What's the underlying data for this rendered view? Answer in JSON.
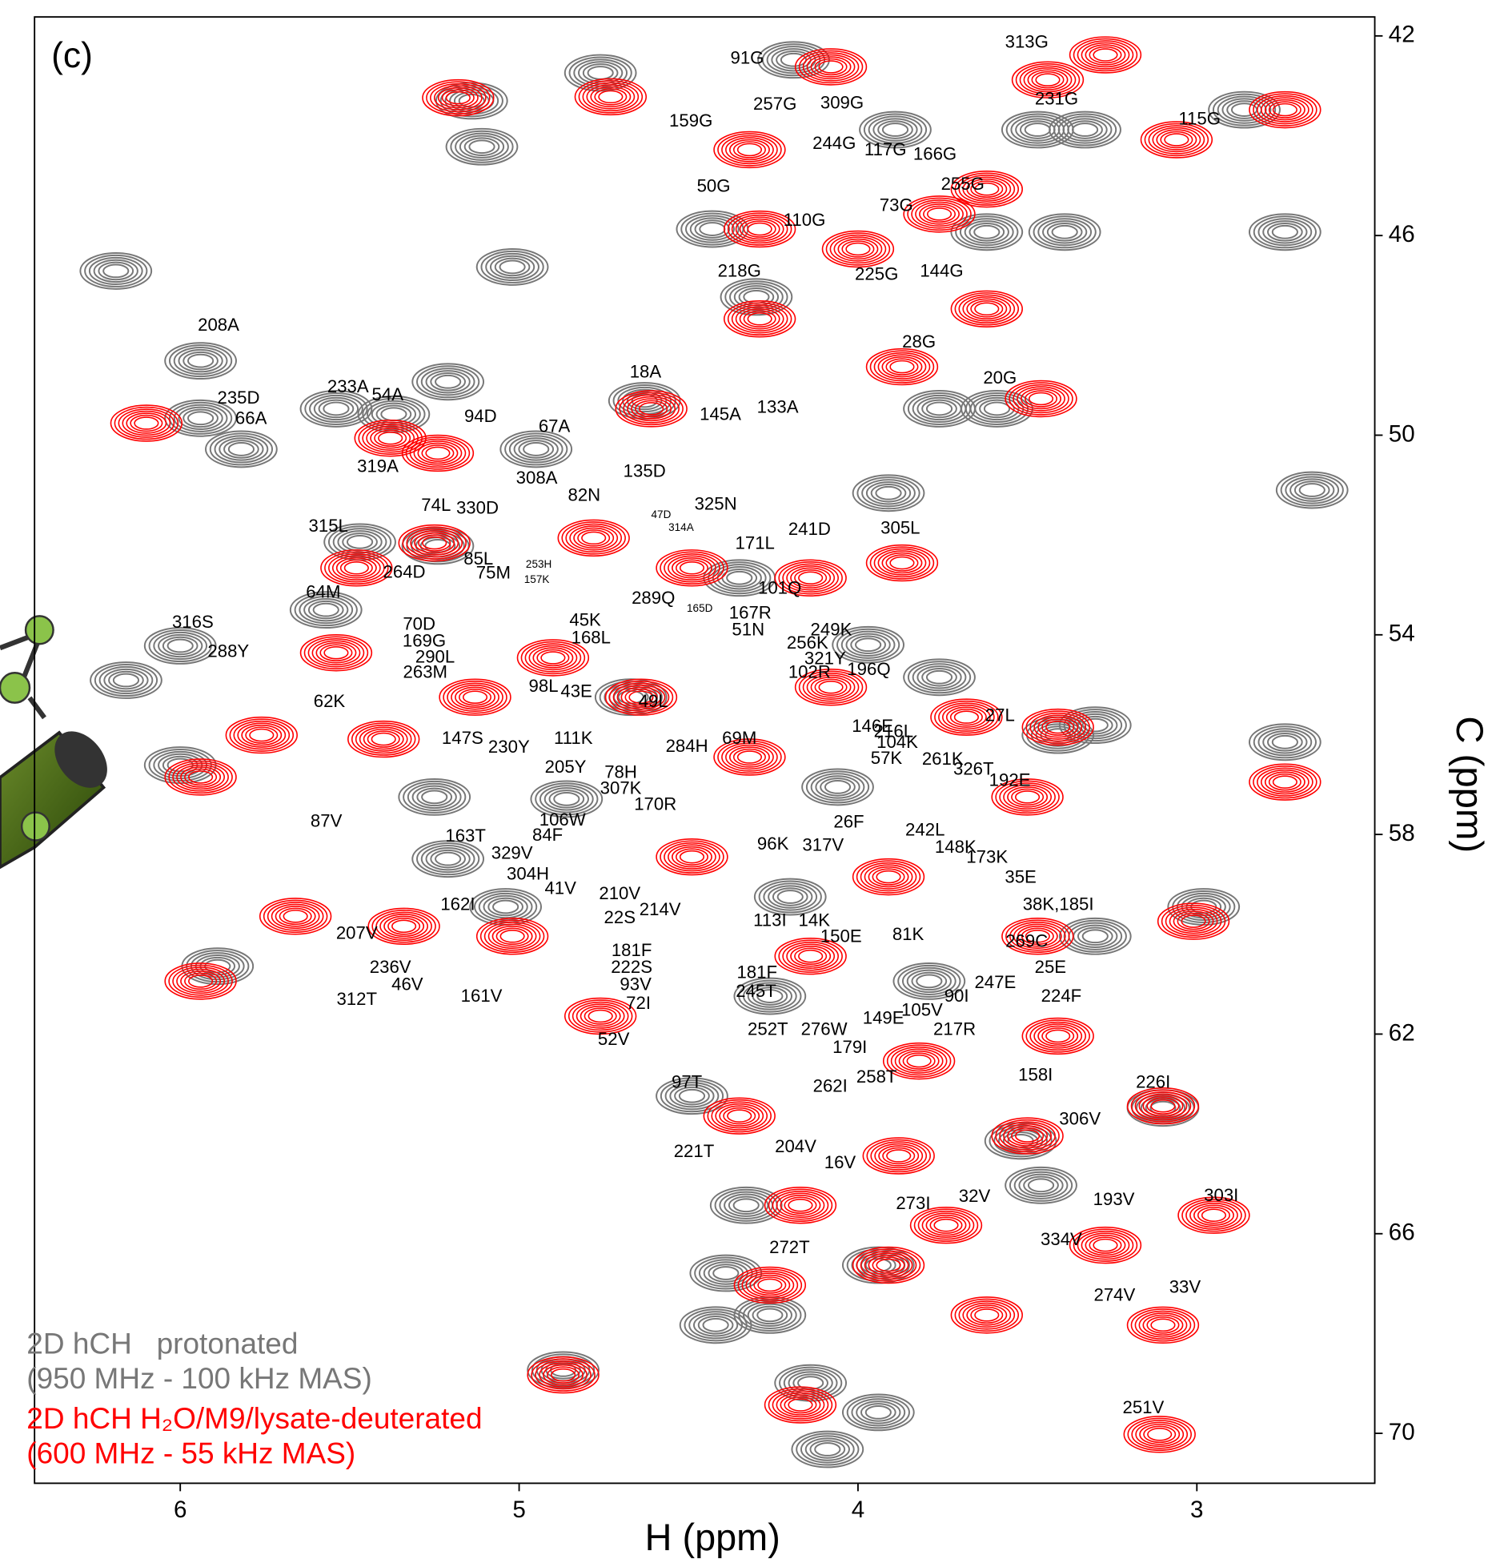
{
  "chart_data": {
    "type": "contour_scatter",
    "panel_label": "(c)",
    "x_label": "H (ppm)",
    "y_label": "C (ppm)",
    "xlim": [
      6.43,
      2.475
    ],
    "ylim": [
      41.62,
      71.0
    ],
    "xticks": [
      6,
      5,
      4,
      3
    ],
    "yticks": [
      42,
      46,
      50,
      54,
      58,
      62,
      66,
      70
    ],
    "legend_position": "bottom left",
    "series": [
      {
        "name": "2D hCH   protonated",
        "conditions": "(950 MHz - 100 kHz MAS)",
        "color": "#777777",
        "x": [
          4.19,
          4.76,
          5.14,
          5.11,
          6.19,
          5.02,
          4.3,
          5.94,
          5.21,
          5.94,
          5.82,
          4.95,
          2.66,
          3.91,
          3.47,
          3.33,
          2.86,
          2.74,
          3.39,
          3.62,
          4.43,
          3.89,
          3.59,
          3.76,
          4.63,
          5.37,
          5.54,
          5.24,
          5.47,
          5.57,
          6.0,
          6.16,
          3.97,
          3.76,
          3.41,
          3.3,
          6.0,
          5.25,
          4.86,
          5.21,
          2.98,
          3.3,
          5.89,
          5.04,
          3.1,
          3.52,
          4.33,
          4.39,
          3.46,
          3.94,
          4.14,
          3.94,
          4.09,
          4.87,
          4.42,
          4.26,
          2.74,
          4.35,
          4.67,
          4.2,
          4.49,
          4.26,
          4.06,
          3.79
        ],
        "y": [
          42.48,
          42.74,
          43.3,
          44.22,
          46.71,
          46.63,
          47.23,
          48.51,
          48.93,
          49.66,
          50.28,
          50.28,
          51.1,
          51.16,
          43.88,
          43.88,
          43.48,
          45.93,
          45.93,
          45.93,
          45.87,
          43.88,
          49.47,
          49.47,
          49.31,
          49.58,
          49.47,
          52.22,
          52.14,
          53.5,
          54.22,
          54.91,
          54.2,
          54.85,
          56.01,
          55.81,
          56.61,
          57.25,
          57.29,
          58.49,
          59.45,
          60.04,
          60.64,
          59.45,
          63.48,
          64.14,
          65.43,
          66.79,
          65.03,
          66.63,
          68.99,
          69.58,
          70.32,
          68.73,
          67.83,
          67.63,
          56.15,
          52.86,
          55.25,
          59.25,
          63.24,
          61.24,
          57.05,
          60.94
        ]
      },
      {
        "name": "2D hCH H₂O/M9/lysate-deuterated",
        "conditions": "(600 MHz - 55 kHz MAS)",
        "color": "#ff0000",
        "x": [
          4.08,
          5.18,
          4.73,
          4.32,
          3.06,
          2.74,
          3.27,
          3.44,
          3.62,
          3.76,
          4.0,
          4.29,
          4.29,
          3.62,
          3.87,
          3.46,
          4.61,
          6.1,
          5.24,
          5.38,
          4.78,
          4.49,
          4.14,
          3.87,
          5.25,
          5.48,
          5.54,
          5.76,
          5.4,
          5.94,
          5.13,
          4.9,
          4.64,
          4.32,
          4.08,
          3.68,
          3.41,
          3.5,
          2.74,
          3.01,
          3.47,
          3.91,
          4.49,
          5.02,
          5.34,
          5.94,
          5.66,
          4.76,
          4.14,
          3.82,
          3.41,
          3.1,
          3.5,
          4.35,
          3.88,
          4.17,
          3.74,
          2.95,
          3.27,
          3.62,
          3.1,
          3.91,
          4.26,
          4.17,
          4.87,
          3.11
        ],
        "y": [
          42.62,
          43.24,
          43.22,
          44.28,
          44.08,
          43.48,
          42.38,
          42.88,
          45.07,
          45.57,
          46.27,
          45.87,
          47.67,
          47.47,
          48.63,
          49.27,
          49.47,
          49.76,
          50.36,
          50.06,
          52.06,
          52.66,
          52.86,
          52.56,
          52.16,
          52.66,
          54.36,
          56.01,
          56.09,
          56.85,
          55.25,
          54.46,
          55.25,
          56.45,
          55.05,
          55.65,
          55.85,
          57.25,
          56.95,
          59.74,
          60.04,
          58.85,
          58.45,
          60.04,
          59.84,
          60.94,
          59.64,
          61.64,
          60.44,
          62.54,
          62.04,
          63.44,
          64.04,
          63.64,
          64.44,
          65.43,
          65.83,
          65.63,
          66.23,
          67.63,
          67.83,
          66.63,
          67.03,
          69.43,
          68.83,
          70.02
        ]
      }
    ],
    "annotations": [
      {
        "text": "91G",
        "x": 4.327,
        "y": 42.46
      },
      {
        "text": "313G",
        "x": 3.502,
        "y": 42.14
      },
      {
        "text": "231G",
        "x": 3.414,
        "y": 43.28
      },
      {
        "text": "115G",
        "x": 2.992,
        "y": 43.68
      },
      {
        "text": "159G",
        "x": 4.493,
        "y": 43.72
      },
      {
        "text": "257G",
        "x": 4.245,
        "y": 43.38
      },
      {
        "text": "309G",
        "x": 4.047,
        "y": 43.36
      },
      {
        "text": "244G",
        "x": 4.07,
        "y": 44.17
      },
      {
        "text": "117G",
        "x": 3.919,
        "y": 44.3
      },
      {
        "text": "166G",
        "x": 3.773,
        "y": 44.39
      },
      {
        "text": "50G",
        "x": 4.426,
        "y": 45.03
      },
      {
        "text": "255G",
        "x": 3.691,
        "y": 44.99
      },
      {
        "text": "73G",
        "x": 3.887,
        "y": 45.41
      },
      {
        "text": "110G",
        "x": 4.158,
        "y": 45.71
      },
      {
        "text": "225G",
        "x": 3.945,
        "y": 46.79
      },
      {
        "text": "144G",
        "x": 3.753,
        "y": 46.73
      },
      {
        "text": "218G",
        "x": 4.35,
        "y": 46.73
      },
      {
        "text": "208A",
        "x": 5.887,
        "y": 47.81
      },
      {
        "text": "28G",
        "x": 3.82,
        "y": 48.15
      },
      {
        "text": "20G",
        "x": 3.581,
        "y": 48.87
      },
      {
        "text": "235D",
        "x": 5.828,
        "y": 49.27
      },
      {
        "text": "233A",
        "x": 5.505,
        "y": 49.05
      },
      {
        "text": "54A",
        "x": 5.388,
        "y": 49.21
      },
      {
        "text": "18A",
        "x": 4.627,
        "y": 48.75
      },
      {
        "text": "66A",
        "x": 5.791,
        "y": 49.68
      },
      {
        "text": "94D",
        "x": 5.114,
        "y": 49.64
      },
      {
        "text": "67A",
        "x": 4.896,
        "y": 49.84
      },
      {
        "text": "145A",
        "x": 4.406,
        "y": 49.6
      },
      {
        "text": "133A",
        "x": 4.237,
        "y": 49.46
      },
      {
        "text": "319A",
        "x": 5.417,
        "y": 50.64
      },
      {
        "text": "308A",
        "x": 4.948,
        "y": 50.88
      },
      {
        "text": "135D",
        "x": 4.63,
        "y": 50.74
      },
      {
        "text": "82N",
        "x": 4.808,
        "y": 51.22
      },
      {
        "text": "74L",
        "x": 5.245,
        "y": 51.42
      },
      {
        "text": "330D",
        "x": 5.123,
        "y": 51.48
      },
      {
        "text": "325N",
        "x": 4.42,
        "y": 51.4
      },
      {
        "text": "241D",
        "x": 4.143,
        "y": 51.9
      },
      {
        "text": "305L",
        "x": 3.875,
        "y": 51.88
      },
      {
        "text": "315L",
        "x": 5.563,
        "y": 51.84
      },
      {
        "text": "171L",
        "x": 4.304,
        "y": 52.18
      },
      {
        "text": "85L",
        "x": 5.12,
        "y": 52.5
      },
      {
        "text": "75M",
        "x": 5.076,
        "y": 52.78
      },
      {
        "text": "264D",
        "x": 5.339,
        "y": 52.76
      },
      {
        "text": "101Q",
        "x": 4.231,
        "y": 53.08
      },
      {
        "text": "289Q",
        "x": 4.604,
        "y": 53.28
      },
      {
        "text": "64M",
        "x": 5.578,
        "y": 53.16
      },
      {
        "text": "167R",
        "x": 4.318,
        "y": 53.58
      },
      {
        "text": "70D",
        "x": 5.295,
        "y": 53.8
      },
      {
        "text": "45K",
        "x": 4.805,
        "y": 53.72
      },
      {
        "text": "51N",
        "x": 4.324,
        "y": 53.92
      },
      {
        "text": "249K",
        "x": 4.079,
        "y": 53.92
      },
      {
        "text": "316S",
        "x": 5.963,
        "y": 53.76
      },
      {
        "text": "169G",
        "x": 5.28,
        "y": 54.14
      },
      {
        "text": "168L",
        "x": 4.788,
        "y": 54.08
      },
      {
        "text": "256K",
        "x": 4.149,
        "y": 54.18
      },
      {
        "text": "288Y",
        "x": 5.858,
        "y": 54.35
      },
      {
        "text": "290L",
        "x": 5.248,
        "y": 54.46
      },
      {
        "text": "321Y",
        "x": 4.097,
        "y": 54.49
      },
      {
        "text": "263M",
        "x": 5.277,
        "y": 54.77
      },
      {
        "text": "102R",
        "x": 4.143,
        "y": 54.77
      },
      {
        "text": "196Q",
        "x": 3.968,
        "y": 54.71
      },
      {
        "text": "98L",
        "x": 4.928,
        "y": 55.05
      },
      {
        "text": "43E",
        "x": 4.831,
        "y": 55.15
      },
      {
        "text": "49L",
        "x": 4.604,
        "y": 55.35
      },
      {
        "text": "62K",
        "x": 5.56,
        "y": 55.35
      },
      {
        "text": "27L",
        "x": 3.581,
        "y": 55.63
      },
      {
        "text": "111K",
        "x": 4.84,
        "y": 56.09
      },
      {
        "text": "69M",
        "x": 4.35,
        "y": 56.09
      },
      {
        "text": "147S",
        "x": 5.167,
        "y": 56.09
      },
      {
        "text": "146E",
        "x": 3.957,
        "y": 55.85
      },
      {
        "text": "216L",
        "x": 3.895,
        "y": 55.95
      },
      {
        "text": "230Y",
        "x": 5.03,
        "y": 56.27
      },
      {
        "text": "284H",
        "x": 4.505,
        "y": 56.25
      },
      {
        "text": "104K",
        "x": 3.884,
        "y": 56.17
      },
      {
        "text": "205Y",
        "x": 4.863,
        "y": 56.67
      },
      {
        "text": "57K",
        "x": 3.916,
        "y": 56.49
      },
      {
        "text": "261K",
        "x": 3.75,
        "y": 56.51
      },
      {
        "text": "326T",
        "x": 3.659,
        "y": 56.71
      },
      {
        "text": "78H",
        "x": 4.7,
        "y": 56.77
      },
      {
        "text": "192E",
        "x": 3.552,
        "y": 56.93
      },
      {
        "text": "307K",
        "x": 4.7,
        "y": 57.09
      },
      {
        "text": "170R",
        "x": 4.598,
        "y": 57.41
      },
      {
        "text": "87V",
        "x": 5.569,
        "y": 57.75
      },
      {
        "text": "106W",
        "x": 4.872,
        "y": 57.73
      },
      {
        "text": "26F",
        "x": 4.027,
        "y": 57.77
      },
      {
        "text": "242L",
        "x": 3.802,
        "y": 57.93
      },
      {
        "text": "84F",
        "x": 4.916,
        "y": 58.03
      },
      {
        "text": "96K",
        "x": 4.251,
        "y": 58.21
      },
      {
        "text": "317V",
        "x": 4.103,
        "y": 58.23
      },
      {
        "text": "148K",
        "x": 3.712,
        "y": 58.27
      },
      {
        "text": "163T",
        "x": 5.158,
        "y": 58.05
      },
      {
        "text": "329V",
        "x": 5.021,
        "y": 58.39
      },
      {
        "text": "173K",
        "x": 3.619,
        "y": 58.47
      },
      {
        "text": "304H",
        "x": 4.974,
        "y": 58.81
      },
      {
        "text": "35E",
        "x": 3.52,
        "y": 58.87
      },
      {
        "text": "41V",
        "x": 4.878,
        "y": 59.1
      },
      {
        "text": "210V",
        "x": 4.703,
        "y": 59.2
      },
      {
        "text": "38K,185I",
        "x": 3.409,
        "y": 59.42
      },
      {
        "text": "214V",
        "x": 4.584,
        "y": 59.52
      },
      {
        "text": "162I",
        "x": 5.181,
        "y": 59.42
      },
      {
        "text": "113I",
        "x": 4.26,
        "y": 59.74
      },
      {
        "text": "14K",
        "x": 4.129,
        "y": 59.74
      },
      {
        "text": "22S",
        "x": 4.703,
        "y": 59.68
      },
      {
        "text": "207V",
        "x": 5.479,
        "y": 60.0
      },
      {
        "text": "150E",
        "x": 4.05,
        "y": 60.06
      },
      {
        "text": "81K",
        "x": 3.852,
        "y": 60.02
      },
      {
        "text": "269C",
        "x": 3.502,
        "y": 60.16
      },
      {
        "text": "181F",
        "x": 4.668,
        "y": 60.34
      },
      {
        "text": "236V",
        "x": 5.38,
        "y": 60.68
      },
      {
        "text": "25E",
        "x": 3.432,
        "y": 60.68
      },
      {
        "text": "222S",
        "x": 4.668,
        "y": 60.68
      },
      {
        "text": "181F",
        "x": 4.298,
        "y": 60.78
      },
      {
        "text": "93V",
        "x": 4.656,
        "y": 61.02
      },
      {
        "text": "46V",
        "x": 5.33,
        "y": 61.02
      },
      {
        "text": "247E",
        "x": 3.595,
        "y": 60.98
      },
      {
        "text": "245T",
        "x": 4.301,
        "y": 61.16
      },
      {
        "text": "161V",
        "x": 5.111,
        "y": 61.26
      },
      {
        "text": "90I",
        "x": 3.709,
        "y": 61.26
      },
      {
        "text": "312T",
        "x": 5.479,
        "y": 61.32
      },
      {
        "text": "72I",
        "x": 4.648,
        "y": 61.4
      },
      {
        "text": "105V",
        "x": 3.811,
        "y": 61.54
      },
      {
        "text": "149E",
        "x": 3.925,
        "y": 61.7
      },
      {
        "text": "224F",
        "x": 3.4,
        "y": 61.26
      },
      {
        "text": "252T",
        "x": 4.266,
        "y": 61.92
      },
      {
        "text": "276W",
        "x": 4.1,
        "y": 61.92
      },
      {
        "text": "217R",
        "x": 3.715,
        "y": 61.92
      },
      {
        "text": "52V",
        "x": 4.721,
        "y": 62.12
      },
      {
        "text": "179I",
        "x": 4.024,
        "y": 62.28
      },
      {
        "text": "97T",
        "x": 4.505,
        "y": 62.98
      },
      {
        "text": "262I",
        "x": 4.082,
        "y": 63.06
      },
      {
        "text": "258T",
        "x": 3.945,
        "y": 62.88
      },
      {
        "text": "158I",
        "x": 3.476,
        "y": 62.84
      },
      {
        "text": "226I",
        "x": 3.129,
        "y": 62.98
      },
      {
        "text": "306V",
        "x": 3.345,
        "y": 63.72
      },
      {
        "text": "204V",
        "x": 4.184,
        "y": 64.27
      },
      {
        "text": "221T",
        "x": 4.484,
        "y": 64.37
      },
      {
        "text": "16V",
        "x": 4.053,
        "y": 64.59
      },
      {
        "text": "273I",
        "x": 3.837,
        "y": 65.41
      },
      {
        "text": "32V",
        "x": 3.656,
        "y": 65.27
      },
      {
        "text": "193V",
        "x": 3.245,
        "y": 65.33
      },
      {
        "text": "303I",
        "x": 2.928,
        "y": 65.25
      },
      {
        "text": "334V",
        "x": 3.4,
        "y": 66.13
      },
      {
        "text": "272T",
        "x": 4.202,
        "y": 66.29
      },
      {
        "text": "274V",
        "x": 3.243,
        "y": 67.25
      },
      {
        "text": "33V",
        "x": 3.035,
        "y": 67.09
      },
      {
        "text": "251V",
        "x": 3.158,
        "y": 69.5
      }
    ],
    "minor_annotations": [
      {
        "text": "47D",
        "x": 4.581,
        "y": 51.6
      },
      {
        "text": "314A",
        "x": 4.522,
        "y": 51.86
      },
      {
        "text": "253H",
        "x": 4.942,
        "y": 52.6
      },
      {
        "text": "157K",
        "x": 4.948,
        "y": 52.9
      },
      {
        "text": "165D",
        "x": 4.467,
        "y": 53.48
      }
    ]
  }
}
